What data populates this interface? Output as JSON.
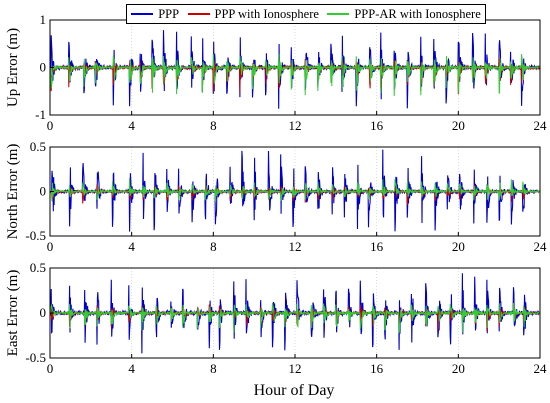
{
  "chart_data": {
    "type": "line",
    "legend": {
      "placement": "top-center",
      "entries": [
        {
          "label": "PPP",
          "color": "#0000cc"
        },
        {
          "label": "PPP with Ionosphere",
          "color": "#cc0000"
        },
        {
          "label": "PPP-AR with Ionosphere",
          "color": "#33cc33"
        }
      ]
    },
    "xlabel": "Hour of Day",
    "xlim": [
      0,
      24
    ],
    "xticks": [
      0,
      4,
      8,
      12,
      16,
      20,
      24
    ],
    "grid": true,
    "subplots": [
      {
        "ylabel": "Up Error (m)",
        "ylim": [
          -1,
          1
        ],
        "yticks": [
          -1,
          0,
          1
        ],
        "spike_hours": [
          0.05,
          0.9,
          1.65,
          2.2,
          3.1,
          3.9,
          4.4,
          5.0,
          5.55,
          6.2,
          6.9,
          7.45,
          8.0,
          8.65,
          9.3,
          9.9,
          10.55,
          11.2,
          11.8,
          12.5,
          13.1,
          13.75,
          14.3,
          15.0,
          15.65,
          16.2,
          16.85,
          17.5,
          18.15,
          18.8,
          19.4,
          20.0,
          20.7,
          21.3,
          22.0,
          22.55,
          23.1
        ],
        "series": [
          {
            "name": "PPP",
            "peak_range": [
              -0.9,
              0.9
            ],
            "settled_noise": 0.04
          },
          {
            "name": "PPP with Ionosphere",
            "peak_range": [
              -0.6,
              0.2
            ],
            "settled_noise": 0.03
          },
          {
            "name": "PPP-AR with Ionosphere",
            "peak_range": [
              -0.7,
              0.3
            ],
            "settled_noise": 0.02
          }
        ]
      },
      {
        "ylabel": "North Error (m)",
        "ylim": [
          -0.5,
          0.5
        ],
        "yticks": [
          -0.5,
          0,
          0.5
        ],
        "spike_hours": [
          0.1,
          0.95,
          1.6,
          2.3,
          3.05,
          3.9,
          4.55,
          5.1,
          5.7,
          6.3,
          6.95,
          7.6,
          8.1,
          8.8,
          9.4,
          10.0,
          10.7,
          11.3,
          11.9,
          12.5,
          13.1,
          13.8,
          14.4,
          15.05,
          15.6,
          16.3,
          16.9,
          17.5,
          18.2,
          18.85,
          19.45,
          20.05,
          20.75,
          21.4,
          22.0,
          22.6,
          23.15
        ],
        "series": [
          {
            "name": "PPP",
            "peak_range": [
              -0.5,
              0.5
            ],
            "settled_noise": 0.015
          },
          {
            "name": "PPP with Ionosphere",
            "peak_range": [
              -0.15,
              0.1
            ],
            "settled_noise": 0.01
          },
          {
            "name": "PPP-AR with Ionosphere",
            "peak_range": [
              -0.12,
              0.15
            ],
            "settled_noise": 0.008
          }
        ]
      },
      {
        "ylabel": "East Error (m)",
        "ylim": [
          -0.5,
          0.5
        ],
        "yticks": [
          -0.5,
          0,
          0.5
        ],
        "spike_hours": [
          0.05,
          0.95,
          1.7,
          2.3,
          3.0,
          3.85,
          4.5,
          5.2,
          5.9,
          6.5,
          7.2,
          7.8,
          8.3,
          9.0,
          9.6,
          10.3,
          10.9,
          11.5,
          12.1,
          12.8,
          13.4,
          14.0,
          14.6,
          15.2,
          15.8,
          16.4,
          17.1,
          17.7,
          18.4,
          19.0,
          19.6,
          20.2,
          20.8,
          21.4,
          22.0,
          22.7,
          23.2
        ],
        "series": [
          {
            "name": "PPP",
            "peak_range": [
              -0.45,
              0.45
            ],
            "settled_noise": 0.02
          },
          {
            "name": "PPP with Ionosphere",
            "peak_range": [
              -0.2,
              0.1
            ],
            "settled_noise": 0.01
          },
          {
            "name": "PPP-AR with Ionosphere",
            "peak_range": [
              -0.25,
              0.12
            ],
            "settled_noise": 0.01
          }
        ]
      }
    ]
  }
}
